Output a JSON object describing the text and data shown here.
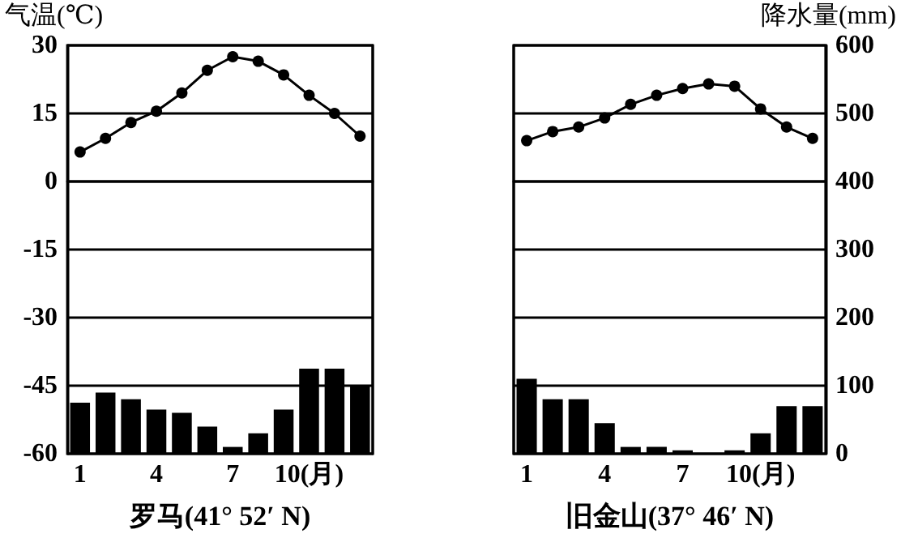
{
  "chart_data": [
    {
      "type": "bar",
      "xlabel": "罗马(41° 52′ N)",
      "ylabel": "气温(℃)",
      "categories": [
        "1",
        null,
        null,
        "4",
        null,
        null,
        "7",
        null,
        null,
        "10(月)",
        null,
        null
      ],
      "series": [
        {
          "type": "line",
          "axis": "y",
          "color": "#000000",
          "values": [
            6.5,
            9.5,
            13,
            15.5,
            19.5,
            24.5,
            27.5,
            26.5,
            23.5,
            19,
            15,
            10
          ]
        },
        {
          "axis": "y2",
          "color": "#000000",
          "values": [
            75,
            90,
            80,
            65,
            60,
            40,
            10,
            30,
            65,
            125,
            125,
            100
          ]
        }
      ],
      "ylim": [
        -60,
        30
      ],
      "yticks": [
        -60,
        -45,
        -30,
        -15,
        0,
        15,
        30
      ],
      "y2lim": [
        0,
        600
      ],
      "grid": "y",
      "marker": "circle"
    },
    {
      "type": "bar",
      "xlabel": "旧金山(37° 46′ N)",
      "y2label": "降水量(mm)",
      "categories": [
        "1",
        null,
        null,
        "4",
        null,
        null,
        "7",
        null,
        null,
        "10(月)",
        null,
        null
      ],
      "series": [
        {
          "type": "line",
          "axis": "y",
          "color": "#000000",
          "values": [
            9,
            11,
            12,
            14,
            17,
            19,
            20.5,
            21.5,
            21,
            16,
            12,
            9.5
          ]
        },
        {
          "axis": "y2",
          "color": "#000000",
          "values": [
            110,
            80,
            80,
            45,
            10,
            10,
            5,
            0,
            5,
            30,
            70,
            70
          ]
        }
      ],
      "ylim": [
        -60,
        30
      ],
      "y2lim": [
        0,
        600
      ],
      "y2ticks": [
        0,
        100,
        200,
        300,
        400,
        500,
        600
      ],
      "grid": "y",
      "marker": "circle"
    }
  ]
}
